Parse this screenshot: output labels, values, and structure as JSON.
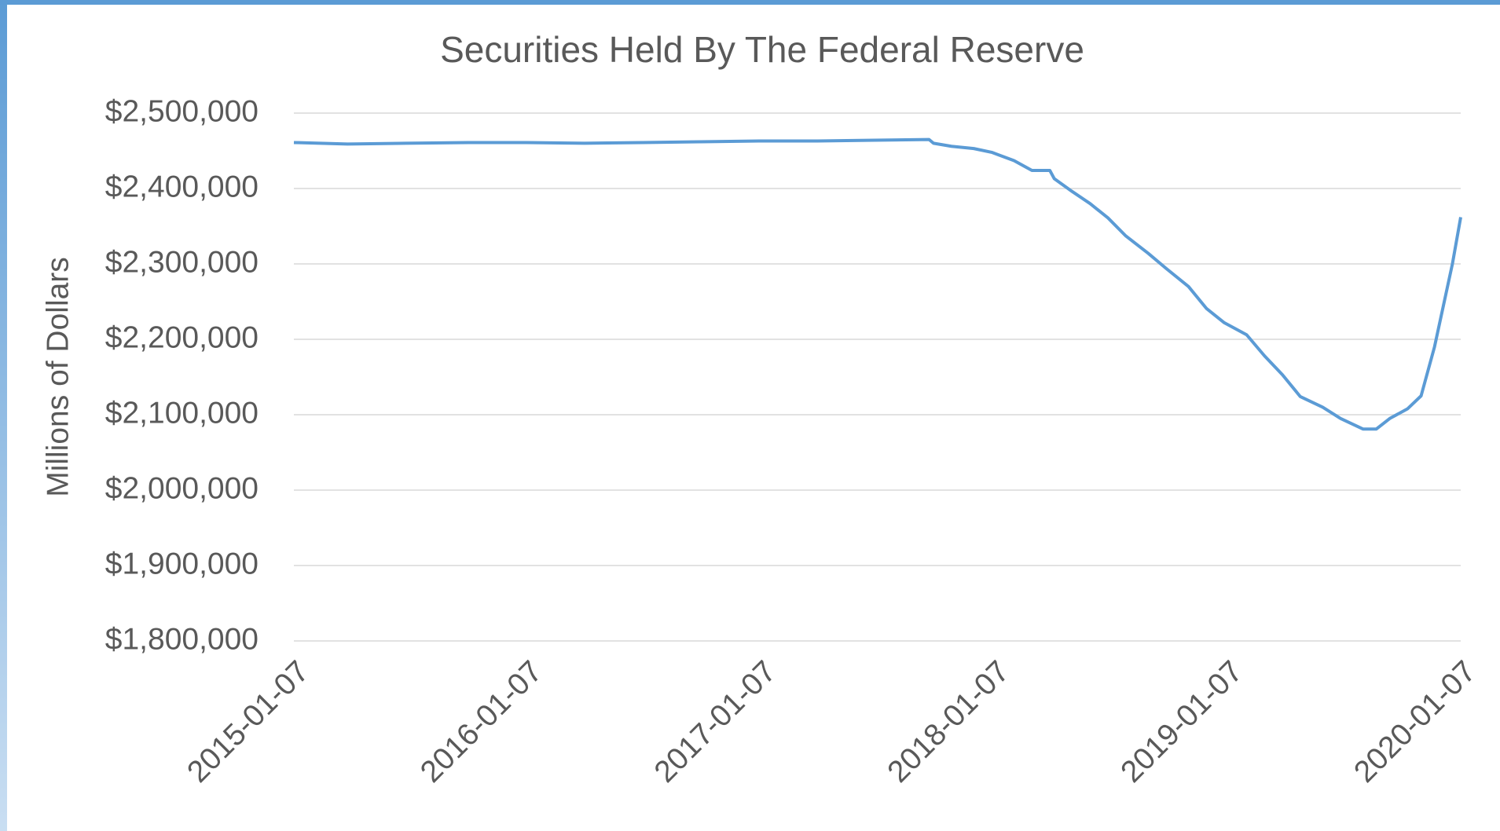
{
  "chart_data": {
    "type": "line",
    "title": "Securities Held By The Federal Reserve",
    "y_label": "Millions of Dollars",
    "color": "#5b9bd5",
    "grid": true,
    "x": [
      "2015-01-07",
      "2015-04-01",
      "2015-07-01",
      "2015-10-07",
      "2016-01-06",
      "2016-04-06",
      "2016-07-06",
      "2016-10-05",
      "2017-01-04",
      "2017-04-05",
      "2017-07-05",
      "2017-09-27",
      "2017-10-04",
      "2017-11-01",
      "2017-12-06",
      "2018-01-03",
      "2018-02-07",
      "2018-03-07",
      "2018-04-04",
      "2018-04-11",
      "2018-05-09",
      "2018-06-06",
      "2018-07-04",
      "2018-08-01",
      "2018-09-05",
      "2018-10-03",
      "2018-11-07",
      "2018-12-05",
      "2019-01-02",
      "2019-02-06",
      "2019-03-06",
      "2019-04-03",
      "2019-05-01",
      "2019-06-05",
      "2019-07-03",
      "2019-08-07",
      "2019-08-28",
      "2019-09-18",
      "2019-10-16",
      "2019-11-06",
      "2019-11-27",
      "2019-12-11",
      "2019-12-25",
      "2020-01-07"
    ],
    "values": [
      2461000,
      2459000,
      2460000,
      2461000,
      2461000,
      2460000,
      2461000,
      2462000,
      2463000,
      2463000,
      2464000,
      2465000,
      2460000,
      2456000,
      2453000,
      2448000,
      2437000,
      2424000,
      2424000,
      2413000,
      2396000,
      2380000,
      2361000,
      2337000,
      2314000,
      2294000,
      2270000,
      2241000,
      2222000,
      2206000,
      2178000,
      2153000,
      2124000,
      2110000,
      2095000,
      2081000,
      2081000,
      2095000,
      2108000,
      2125000,
      2190000,
      2245000,
      2300000,
      2362000
    ],
    "xlim": [
      "2015-01-07",
      "2020-01-07"
    ],
    "xticks": [
      "2015-01-07",
      "2016-01-07",
      "2017-01-07",
      "2018-01-07",
      "2019-01-07",
      "2020-01-07"
    ],
    "ylim": [
      1800000,
      2500000
    ],
    "yticks": [
      {
        "value": 1800000,
        "label": "$1,800,000"
      },
      {
        "value": 1900000,
        "label": "$1,900,000"
      },
      {
        "value": 2000000,
        "label": "$2,000,000"
      },
      {
        "value": 2100000,
        "label": "$2,100,000"
      },
      {
        "value": 2200000,
        "label": "$2,200,000"
      },
      {
        "value": 2300000,
        "label": "$2,300,000"
      },
      {
        "value": 2400000,
        "label": "$2,400,000"
      },
      {
        "value": 2500000,
        "label": "$2,500,000"
      }
    ]
  }
}
